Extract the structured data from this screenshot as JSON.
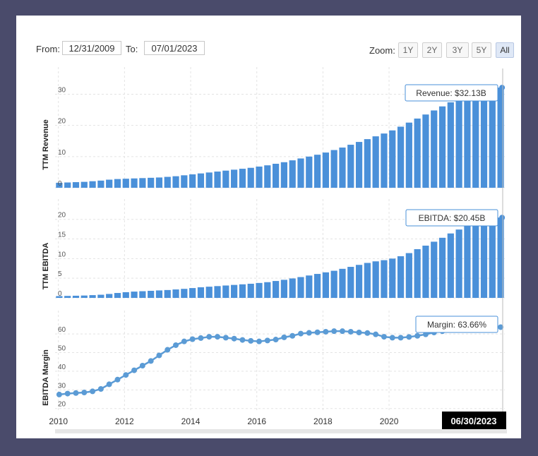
{
  "range": {
    "from_label": "From:",
    "from_value": "12/31/2009",
    "to_label": "To:",
    "to_value": "07/01/2023"
  },
  "zoom": {
    "label": "Zoom:",
    "buttons": [
      "1Y",
      "2Y",
      "3Y",
      "5Y",
      "All"
    ],
    "active": "All"
  },
  "colors": {
    "bar": "#4a90d9",
    "line": "#5b9bd5",
    "grid": "#e3e3e3",
    "tooltip_border": "#4a90d9"
  },
  "chart_data": [
    {
      "type": "bar",
      "title": "TTM Revenue",
      "ylabel": "TTM Revenue",
      "ylim": [
        0,
        36
      ],
      "yticks": [
        0,
        10,
        20,
        30
      ],
      "tooltip": "Revenue: $32.13B",
      "x_start": 2009.9,
      "x_end": 2023.5,
      "values": [
        1.6,
        1.7,
        1.8,
        1.9,
        2.1,
        2.3,
        2.6,
        2.8,
        2.9,
        3.0,
        3.1,
        3.2,
        3.3,
        3.5,
        3.7,
        4.0,
        4.3,
        4.6,
        4.9,
        5.2,
        5.5,
        5.8,
        6.1,
        6.4,
        6.8,
        7.2,
        7.7,
        8.2,
        8.8,
        9.4,
        10.0,
        10.6,
        11.3,
        12.1,
        12.9,
        13.8,
        14.7,
        15.6,
        16.5,
        17.4,
        18.4,
        19.6,
        20.9,
        22.2,
        23.5,
        24.8,
        26.1,
        27.4,
        28.7,
        30.0,
        31.0,
        31.8,
        32.13,
        32.13
      ]
    },
    {
      "type": "bar",
      "title": "TTM EBITDA",
      "ylabel": "TTM EBITDA",
      "ylim": [
        0,
        23
      ],
      "yticks": [
        0,
        5,
        10,
        15,
        20
      ],
      "tooltip": "EBITDA: $20.45B",
      "x_start": 2009.9,
      "x_end": 2023.5,
      "values": [
        0.45,
        0.5,
        0.55,
        0.6,
        0.7,
        0.8,
        1.0,
        1.25,
        1.45,
        1.6,
        1.7,
        1.8,
        1.9,
        2.0,
        2.15,
        2.3,
        2.5,
        2.7,
        2.85,
        3.0,
        3.15,
        3.3,
        3.45,
        3.6,
        3.8,
        4.0,
        4.3,
        4.6,
        4.95,
        5.3,
        5.7,
        6.1,
        6.5,
        6.9,
        7.4,
        7.9,
        8.4,
        8.9,
        9.3,
        9.6,
        10.0,
        10.6,
        11.4,
        12.4,
        13.3,
        14.3,
        15.3,
        16.4,
        17.4,
        18.3,
        19.2,
        19.9,
        20.45,
        20.45
      ]
    },
    {
      "type": "line",
      "title": "EBITDA Margin",
      "ylabel": "EBITDA Margin",
      "ylim": [
        18,
        68
      ],
      "yticks": [
        20,
        30,
        40,
        50,
        60
      ],
      "xticks": [
        2010,
        2012,
        2014,
        2016,
        2018,
        2020
      ],
      "tooltip": "Margin: 63.66%",
      "date_badge": "06/30/2023",
      "x_start": 2009.9,
      "x_end": 2023.5,
      "values": [
        27.5,
        28.0,
        28.3,
        28.6,
        29.2,
        30.5,
        33.0,
        35.5,
        38.0,
        40.5,
        43.0,
        45.5,
        48.5,
        51.5,
        54.0,
        56.0,
        57.2,
        57.8,
        58.5,
        58.5,
        58.0,
        57.5,
        56.8,
        56.3,
        56.0,
        56.5,
        57.0,
        58.2,
        59.0,
        60.2,
        60.6,
        60.9,
        61.2,
        61.5,
        61.5,
        61.2,
        60.8,
        60.5,
        59.8,
        58.5,
        58.0,
        58.0,
        58.4,
        59.0,
        59.8,
        60.8,
        61.5,
        62.2,
        62.6,
        63.0,
        63.2,
        63.4,
        63.5,
        63.66
      ]
    }
  ]
}
